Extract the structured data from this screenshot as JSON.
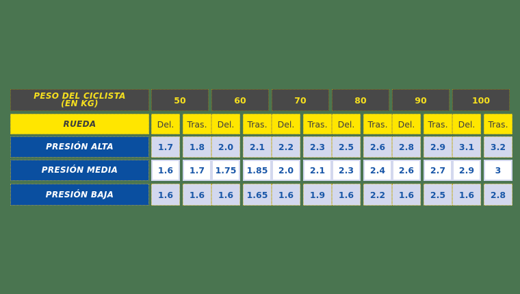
{
  "table": {
    "header_label": "PESO DEL CICLISTA (EN KG)",
    "header_label_line1": "PESO DEL CICLISTA",
    "header_label_line2": "(EN KG)",
    "wheel_label": "RUEDA",
    "weights": [
      "50",
      "60",
      "70",
      "80",
      "90",
      "100"
    ],
    "sub_labels": [
      "Del.",
      "Tras."
    ],
    "rows": [
      {
        "label": "PRESIÓN ALTA",
        "values": [
          "1.7",
          "1.8",
          "2.0",
          "2.1",
          "2.2",
          "2.3",
          "2.5",
          "2.6",
          "2.8",
          "2.9",
          "3.1",
          "3.2"
        ]
      },
      {
        "label": "PRESIÓN MEDIA",
        "values": [
          "1.6",
          "1.7",
          "1.75",
          "1.85",
          "2.0",
          "2.1",
          "2.3",
          "2.4",
          "2.6",
          "2.7",
          "2.9",
          "3"
        ]
      },
      {
        "label": "PRESIÓN BAJA",
        "values": [
          "1.6",
          "1.6",
          "1.6",
          "1.65",
          "1.6",
          "1.9",
          "1.6",
          "2.2",
          "1.6",
          "2.5",
          "1.6",
          "2.8"
        ]
      }
    ]
  },
  "colors": {
    "background": "#4a7550",
    "header_dark": "#484848",
    "header_text": "#f5df1f",
    "yellow": "#ffe600",
    "blue": "#0a4fa0",
    "cell_lavender": "#d3d8ee",
    "value_text": "#1a57a8"
  }
}
